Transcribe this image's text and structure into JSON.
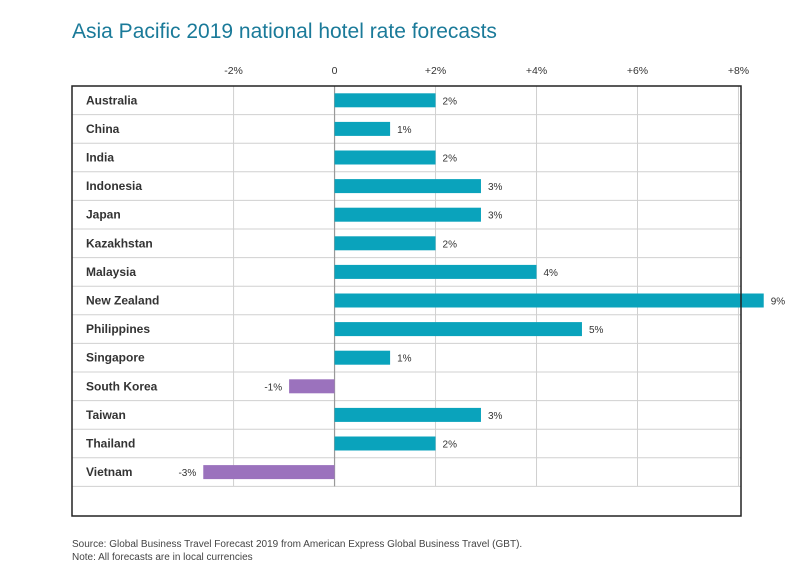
{
  "chart_data": {
    "type": "bar",
    "orientation": "horizontal",
    "title": "Asia Pacific 2019 national hotel rate forecasts",
    "categories": [
      "Australia",
      "China",
      "India",
      "Indonesia",
      "Japan",
      "Kazakhstan",
      "Malaysia",
      "New Zealand",
      "Philippines",
      "Singapore",
      "South Korea",
      "Taiwan",
      "Thailand",
      "Vietnam"
    ],
    "values": [
      2,
      1,
      2,
      3,
      3,
      2,
      4,
      9,
      5,
      1,
      -1,
      3,
      2,
      -3
    ],
    "value_labels": [
      "2%",
      "1%",
      "2%",
      "3%",
      "3%",
      "2%",
      "4%",
      "9%",
      "5%",
      "1%",
      "-1%",
      "3%",
      "2%",
      "-3%"
    ],
    "value_display": [
      2,
      1.1,
      2,
      2.9,
      2.9,
      2,
      4,
      8.5,
      4.9,
      1.1,
      -0.9,
      2.9,
      2,
      -2.6
    ],
    "xlim": [
      -5.2,
      8.05
    ],
    "xticks": [
      -2,
      0,
      2,
      4,
      6,
      8
    ],
    "xtick_labels": [
      "-2%",
      "0",
      "+2%",
      "+4%",
      "+6%",
      "+8%"
    ],
    "grid": true,
    "colors": {
      "positive": "#0aa3bc",
      "negative": "#9b72bd",
      "grid": "#d0d0d0",
      "axis": "#999999",
      "frame": "#222222"
    }
  },
  "footer": {
    "source": "Source: Global Business Travel Forecast 2019 from American Express Global Business Travel (GBT).",
    "note": "Note: All forecasts are in local currencies"
  }
}
